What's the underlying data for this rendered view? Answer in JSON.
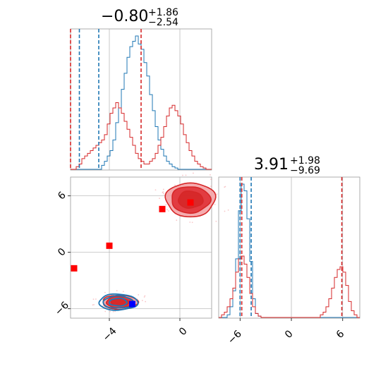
{
  "colors": {
    "blue": "#1f77b4",
    "red": "#d62728",
    "marker_red": "#ff0000",
    "marker_blue": "#0000ff",
    "grid": "#b0b0b0",
    "fill_light": "#f4a3a6",
    "fill_dark": "#e03035",
    "blue_fill": "#7fb2d8"
  },
  "titles": {
    "x_param": {
      "main": "−0.80",
      "sup": "+1.86",
      "sub": "−2.54"
    },
    "y_param": {
      "main": "3.91",
      "sup": "+1.98",
      "sub": "−9.69"
    }
  },
  "chart_data": [
    {
      "type": "histogram",
      "panel": "top-left",
      "x_range": [
        -6.2,
        1.8
      ],
      "x_ticks": [
        -4,
        0
      ],
      "grid": true,
      "bin_edges_start": -6.2,
      "bin_width": 0.16,
      "series": [
        {
          "name": "",
          "color": "blue",
          "counts": [
            0,
            0,
            0,
            0,
            0,
            0,
            0,
            0,
            0,
            0,
            0,
            3,
            6,
            10,
            14,
            22,
            35,
            46,
            60,
            72,
            84,
            92,
            96,
            100,
            94,
            90,
            80,
            70,
            56,
            44,
            32,
            22,
            15,
            10,
            6,
            4,
            2,
            1,
            0,
            0,
            0,
            0,
            0,
            0,
            0,
            0,
            0,
            0,
            0,
            0
          ],
          "quantile_lines": [
            -5.7,
            -4.6
          ]
        },
        {
          "name": "",
          "color": "red",
          "counts": [
            0,
            0,
            2,
            4,
            8,
            10,
            12,
            14,
            16,
            18,
            20,
            22,
            26,
            34,
            42,
            46,
            50,
            46,
            42,
            36,
            30,
            24,
            18,
            12,
            8,
            6,
            4,
            4,
            6,
            8,
            12,
            18,
            24,
            32,
            40,
            46,
            48,
            44,
            40,
            34,
            26,
            20,
            14,
            10,
            6,
            4,
            2,
            1,
            0,
            0
          ],
          "quantile_lines": [
            -6.2,
            -2.2
          ]
        }
      ],
      "y_max": 100
    },
    {
      "type": "contour",
      "panel": "bottom-left",
      "x_range": [
        -6.2,
        1.8
      ],
      "y_range": [
        -7.0,
        8.0
      ],
      "x_ticks": [
        -4,
        0
      ],
      "y_ticks": [
        -6,
        0,
        6
      ],
      "grid": true,
      "modes": [
        {
          "series": "red",
          "cx": 0.6,
          "cy": 5.6,
          "levels": [
            [
              1.4,
              1.8
            ],
            [
              1.1,
              1.4
            ],
            [
              0.7,
              0.9
            ]
          ]
        },
        {
          "series": "red",
          "cx": -3.4,
          "cy": -5.3,
          "levels": [
            [
              1.0,
              0.75
            ],
            [
              0.78,
              0.58
            ],
            [
              0.5,
              0.38
            ]
          ]
        },
        {
          "series": "blue",
          "cx": -3.5,
          "cy": -5.3,
          "levels": [
            [
              1.1,
              0.85
            ],
            [
              0.85,
              0.65
            ],
            [
              0.5,
              0.4
            ]
          ]
        }
      ],
      "points": [
        {
          "color": "marker_red",
          "x": -1.0,
          "y": 4.6
        },
        {
          "color": "marker_red",
          "x": 0.6,
          "y": 5.3
        },
        {
          "color": "marker_red",
          "x": -4.0,
          "y": 0.7
        },
        {
          "color": "marker_red",
          "x": -6.0,
          "y": -1.7
        },
        {
          "color": "marker_blue",
          "x": -2.7,
          "y": -5.5
        }
      ]
    },
    {
      "type": "histogram",
      "panel": "bottom-right",
      "x_range": [
        -8.5,
        8.0
      ],
      "x_ticks": [
        -6,
        0,
        6
      ],
      "grid": true,
      "bin_edges_start": -8.5,
      "bin_width": 0.33,
      "series": [
        {
          "name": "",
          "color": "blue",
          "counts": [
            0,
            0,
            0,
            2,
            8,
            20,
            44,
            80,
            100,
            95,
            74,
            42,
            14,
            3,
            1,
            0,
            0,
            0,
            0,
            0,
            0,
            0,
            0,
            0,
            0,
            0,
            0,
            0,
            0,
            0,
            0,
            0,
            0,
            0,
            0,
            0,
            0,
            0,
            0,
            0,
            0,
            0,
            0,
            0,
            0,
            0,
            0,
            0,
            0,
            0
          ],
          "quantile_lines": [
            -6.0,
            -4.7
          ]
        },
        {
          "name": "",
          "color": "red",
          "counts": [
            0,
            2,
            4,
            8,
            14,
            22,
            34,
            44,
            46,
            40,
            30,
            18,
            8,
            3,
            1,
            0,
            0,
            0,
            0,
            0,
            0,
            0,
            0,
            0,
            0,
            0,
            0,
            0,
            0,
            0,
            0,
            0,
            0,
            0,
            0,
            0,
            2,
            4,
            8,
            14,
            22,
            30,
            36,
            38,
            34,
            24,
            12,
            5,
            2,
            0
          ],
          "quantile_lines": [
            -5.8,
            5.9
          ]
        }
      ],
      "y_max": 100
    }
  ]
}
